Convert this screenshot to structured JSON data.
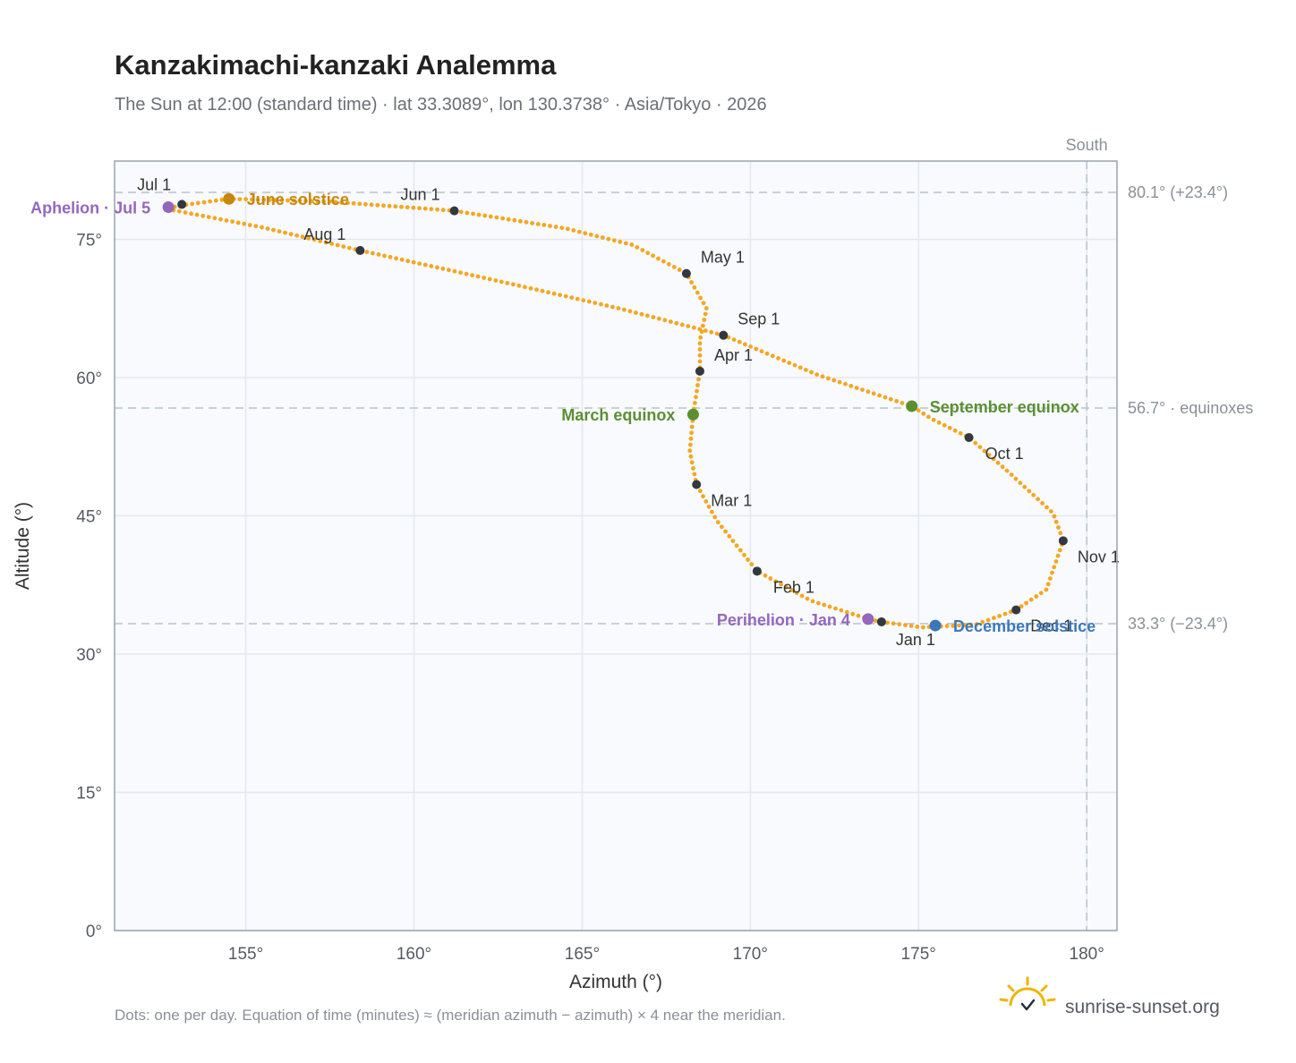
{
  "header": {
    "title": "Kanzakimachi-kanzaki Analemma",
    "subtitle": "The Sun at 12:00 (standard time) · lat 33.3089°, lon 130.3738° · Asia/Tokyo · 2026"
  },
  "footer": {
    "footnote": "Dots: one per day. Equation of time (minutes) ≈ (meridian azimuth − azimuth) × 4 near the meridian.",
    "brand": "sunrise-sunset.org"
  },
  "colors": {
    "curve": "#f5a623",
    "month_point": "#333840",
    "june_solstice": "#c8860a",
    "december_solstice": "#3b78bb",
    "equinox": "#5a8f32",
    "apsis": "#9467bd",
    "grid": "#e4e8ee",
    "plot_bg": "#f8fafd",
    "ref_line": "#b8c2cc",
    "brand_icon": "#f0b400"
  },
  "chart_data": {
    "type": "scatter",
    "xlabel": "Azimuth (°)",
    "ylabel": "Altitude (°)",
    "xlim": [
      151.1,
      180.9
    ],
    "ylim": [
      0,
      83.5
    ],
    "xticks": [
      155,
      160,
      165,
      170,
      175,
      180
    ],
    "xtick_labels": [
      "155°",
      "160°",
      "165°",
      "170°",
      "175°",
      "180°"
    ],
    "yticks": [
      0,
      15,
      30,
      45,
      60,
      75
    ],
    "ytick_labels": [
      "0°",
      "15°",
      "30°",
      "45°",
      "60°",
      "75°"
    ],
    "grid": true,
    "reference_lines": [
      {
        "orientation": "horizontal",
        "value": 80.1,
        "label": "80.1° (+23.4°)"
      },
      {
        "orientation": "horizontal",
        "value": 56.7,
        "label": "56.7° · equinoxes"
      },
      {
        "orientation": "horizontal",
        "value": 33.3,
        "label": "33.3° (−23.4°)"
      },
      {
        "orientation": "vertical",
        "value": 180,
        "label": "South"
      }
    ],
    "daily_path": [
      [
        173.9,
        33.5
      ],
      [
        175.1,
        32.9
      ],
      [
        176.7,
        33.2
      ],
      [
        177.9,
        34.8
      ],
      [
        178.8,
        37.0
      ],
      [
        179.3,
        42.3
      ],
      [
        179.0,
        45.3
      ],
      [
        177.6,
        50.0
      ],
      [
        176.5,
        53.5
      ],
      [
        175.4,
        55.5
      ],
      [
        174.8,
        56.9
      ],
      [
        172.0,
        60.3
      ],
      [
        169.2,
        64.6
      ],
      [
        166.0,
        67.6
      ],
      [
        162.0,
        70.9
      ],
      [
        158.4,
        73.8
      ],
      [
        155.5,
        76.3
      ],
      [
        152.8,
        78.2
      ],
      [
        152.9,
        78.6
      ],
      [
        154.5,
        79.4
      ],
      [
        157.5,
        79.1
      ],
      [
        161.2,
        78.1
      ],
      [
        164.5,
        76.2
      ],
      [
        166.5,
        74.4
      ],
      [
        168.1,
        71.3
      ],
      [
        168.7,
        67.5
      ],
      [
        168.5,
        64.0
      ],
      [
        168.5,
        60.7
      ],
      [
        168.3,
        56.0
      ],
      [
        168.2,
        52.0
      ],
      [
        168.4,
        48.4
      ],
      [
        169.0,
        44.5
      ],
      [
        170.2,
        39.0
      ],
      [
        171.8,
        35.8
      ],
      [
        173.6,
        33.7
      ],
      [
        173.9,
        33.5
      ]
    ],
    "month_points": [
      {
        "label": "Jan 1",
        "x": 173.9,
        "y": 33.5
      },
      {
        "label": "Feb 1",
        "x": 170.2,
        "y": 39.0
      },
      {
        "label": "Mar 1",
        "x": 168.4,
        "y": 48.4
      },
      {
        "label": "Apr 1",
        "x": 168.5,
        "y": 60.7
      },
      {
        "label": "May 1",
        "x": 168.1,
        "y": 71.3
      },
      {
        "label": "Jun 1",
        "x": 161.2,
        "y": 78.1
      },
      {
        "label": "Jul 1",
        "x": 153.1,
        "y": 78.8
      },
      {
        "label": "Aug 1",
        "x": 158.4,
        "y": 73.8
      },
      {
        "label": "Sep 1",
        "x": 169.2,
        "y": 64.6
      },
      {
        "label": "Oct 1",
        "x": 176.5,
        "y": 53.5
      },
      {
        "label": "Nov 1",
        "x": 179.3,
        "y": 42.3
      },
      {
        "label": "Dec 1",
        "x": 177.9,
        "y": 34.8
      }
    ],
    "events": [
      {
        "label": "June solstice",
        "x": 154.5,
        "y": 79.4,
        "color_key": "june_solstice",
        "anchor": "right"
      },
      {
        "label": "December solstice",
        "x": 175.5,
        "y": 33.1,
        "color_key": "december_solstice",
        "anchor": "right"
      },
      {
        "label": "March equinox",
        "x": 168.3,
        "y": 56.0,
        "color_key": "equinox",
        "anchor": "left"
      },
      {
        "label": "September equinox",
        "x": 174.8,
        "y": 56.9,
        "color_key": "equinox",
        "anchor": "right"
      },
      {
        "label": "Aphelion · Jul 5",
        "x": 152.7,
        "y": 78.5,
        "color_key": "apsis",
        "anchor": "left"
      },
      {
        "label": "Perihelion · Jan 4",
        "x": 173.5,
        "y": 33.8,
        "color_key": "apsis",
        "anchor": "left"
      }
    ]
  }
}
